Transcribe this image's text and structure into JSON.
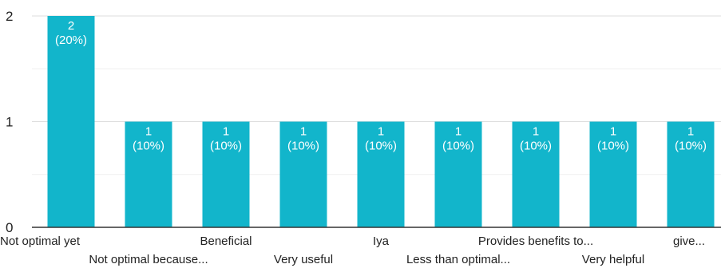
{
  "chart_data": {
    "type": "bar",
    "title": "",
    "xlabel": "",
    "ylabel": "",
    "ylim": [
      0,
      2
    ],
    "yticks": [
      "0",
      "1",
      "2"
    ],
    "grid": true,
    "categories": [
      "Not optimal yet",
      "Not optimal because...",
      "Beneficial",
      "Very useful",
      "Iya",
      "Less than optimal...",
      "Provides benefits to...",
      "Very helpful",
      "give..."
    ],
    "values": [
      2,
      1,
      1,
      1,
      1,
      1,
      1,
      1,
      1
    ],
    "data_labels": [
      [
        "2",
        "(20%)"
      ],
      [
        "1",
        "(10%)"
      ],
      [
        "1",
        "(10%)"
      ],
      [
        "1",
        "(10%)"
      ],
      [
        "1",
        "(10%)"
      ],
      [
        "1",
        "(10%)"
      ],
      [
        "1",
        "(10%)"
      ],
      [
        "1",
        "(10%)"
      ],
      [
        "1",
        "(10%)"
      ]
    ],
    "colors": {
      "bar": "#12b5cb",
      "grid": "#e6e6e6",
      "axis": "#333333",
      "bar_label": "#ffffff",
      "text": "#222222"
    }
  }
}
